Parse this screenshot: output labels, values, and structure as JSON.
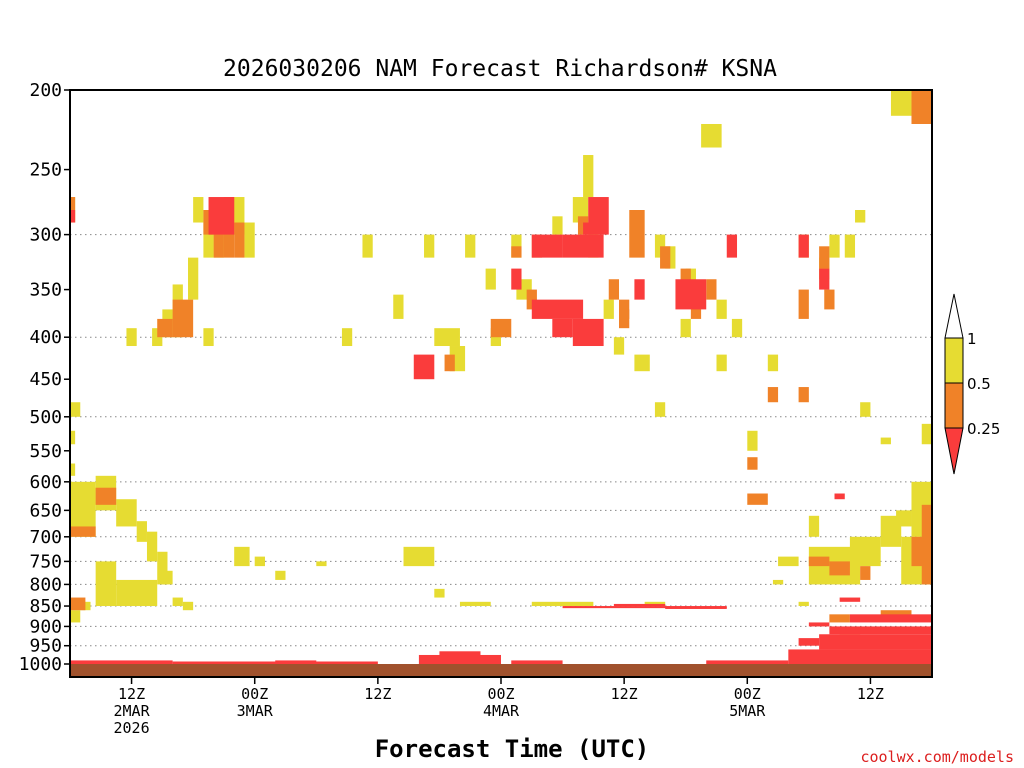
{
  "chart_data": {
    "type": "heatmap",
    "title": "2026030206 NAM Forecast Richardson# KSNA",
    "xlabel": "Forecast Time (UTC)",
    "ylabel": "",
    "credit": "coolwx.com/models",
    "x_unit": "forecast hour from 2026-03-02 06Z",
    "xlim": [
      0,
      84
    ],
    "y_unit": "hPa",
    "ylim": [
      1000,
      200
    ],
    "y_ticks": [
      200,
      250,
      300,
      350,
      400,
      450,
      500,
      550,
      600,
      650,
      700,
      750,
      800,
      850,
      900,
      950,
      1000
    ],
    "grid_levels": [
      300,
      400,
      500,
      600,
      650,
      700,
      750,
      800,
      850,
      900,
      950
    ],
    "x_ticks": [
      {
        "hour": 6,
        "lines": [
          "12Z",
          "2MAR",
          "2026"
        ]
      },
      {
        "hour": 18,
        "lines": [
          "00Z",
          "3MAR"
        ]
      },
      {
        "hour": 30,
        "lines": [
          "12Z"
        ]
      },
      {
        "hour": 42,
        "lines": [
          "00Z",
          "4MAR"
        ]
      },
      {
        "hour": 54,
        "lines": [
          "12Z"
        ]
      },
      {
        "hour": 66,
        "lines": [
          "00Z",
          "5MAR"
        ]
      },
      {
        "hour": 78,
        "lines": [
          "12Z"
        ]
      }
    ],
    "colorbar": {
      "labels": [
        "1",
        "0.5",
        "0.25"
      ],
      "categories": [
        {
          "name": "0.5-1",
          "color": "#e6dc32"
        },
        {
          "name": "0.25-0.5",
          "color": "#f08228"
        },
        {
          "name": "<0.25",
          "color": "#fa3c3c"
        }
      ],
      "over_color": "#ffffff"
    },
    "ground_color": "#a0522d",
    "series": [
      {
        "name": "0.5-1",
        "color": "#e6dc32",
        "cells": [
          [
            0,
            0.5,
            270,
            290
          ],
          [
            12,
            13,
            270,
            290
          ],
          [
            13,
            14,
            290,
            320
          ],
          [
            14,
            15,
            280,
            320
          ],
          [
            15,
            17,
            270,
            300
          ],
          [
            17,
            18,
            290,
            320
          ],
          [
            11.5,
            12.5,
            320,
            360
          ],
          [
            10,
            11,
            345,
            400
          ],
          [
            9,
            10,
            370,
            400
          ],
          [
            8,
            9,
            390,
            410
          ],
          [
            5.5,
            6.5,
            390,
            410
          ],
          [
            13,
            14,
            390,
            410
          ],
          [
            26.5,
            27.5,
            390,
            410
          ],
          [
            28.5,
            29.5,
            300,
            320
          ],
          [
            31.5,
            32.5,
            355,
            380
          ],
          [
            34.5,
            35.5,
            300,
            320
          ],
          [
            35.5,
            38,
            390,
            410
          ],
          [
            37,
            38.5,
            410,
            440
          ],
          [
            38.5,
            39.5,
            300,
            320
          ],
          [
            40.5,
            41.5,
            330,
            350
          ],
          [
            41,
            42,
            390,
            410
          ],
          [
            43,
            44,
            300,
            320
          ],
          [
            43.5,
            45,
            340,
            360
          ],
          [
            47,
            48,
            285,
            300
          ],
          [
            49,
            50.5,
            270,
            290
          ],
          [
            50,
            51,
            240,
            270
          ],
          [
            50.5,
            51.5,
            300,
            320
          ],
          [
            52,
            53,
            360,
            380
          ],
          [
            53,
            54,
            400,
            420
          ],
          [
            57,
            58,
            300,
            320
          ],
          [
            55,
            56.5,
            420,
            440
          ],
          [
            58,
            59,
            310,
            330
          ],
          [
            60,
            61,
            330,
            350
          ],
          [
            59.5,
            60.5,
            380,
            400
          ],
          [
            63,
            64,
            360,
            380
          ],
          [
            64.5,
            65.5,
            380,
            400
          ],
          [
            63,
            64,
            420,
            440
          ],
          [
            61.5,
            63.5,
            220,
            235
          ],
          [
            80,
            82,
            200,
            215
          ],
          [
            71,
            72,
            300,
            320
          ],
          [
            73,
            74,
            320,
            340
          ],
          [
            74,
            75,
            300,
            320
          ],
          [
            75.5,
            76.5,
            300,
            320
          ],
          [
            76.5,
            77.5,
            280,
            290
          ],
          [
            68,
            69,
            420,
            440
          ],
          [
            57,
            58,
            480,
            500
          ],
          [
            66,
            67,
            520,
            550
          ],
          [
            77,
            78,
            480,
            500
          ],
          [
            79,
            80,
            530,
            540
          ],
          [
            83,
            84,
            510,
            540
          ],
          [
            0,
            1,
            480,
            500
          ],
          [
            0,
            0.5,
            520,
            540
          ],
          [
            0,
            2.5,
            600,
            700
          ],
          [
            2.5,
            4.5,
            590,
            650
          ],
          [
            4.5,
            6.5,
            630,
            680
          ],
          [
            6.5,
            7.5,
            670,
            710
          ],
          [
            7.5,
            8.5,
            690,
            750
          ],
          [
            8.5,
            9.5,
            730,
            800
          ],
          [
            0,
            0.5,
            570,
            590
          ],
          [
            2.5,
            4.5,
            750,
            850
          ],
          [
            4.5,
            8.5,
            790,
            850
          ],
          [
            9,
            10,
            770,
            800
          ],
          [
            10,
            11,
            830,
            850
          ],
          [
            11,
            12,
            840,
            860
          ],
          [
            1,
            2,
            840,
            860
          ],
          [
            0,
            1,
            860,
            890
          ],
          [
            16,
            17.5,
            720,
            760
          ],
          [
            18,
            19,
            740,
            760
          ],
          [
            20,
            21,
            770,
            790
          ],
          [
            24,
            25,
            750,
            760
          ],
          [
            32.5,
            35.5,
            720,
            760
          ],
          [
            35.5,
            36.5,
            810,
            830
          ],
          [
            38,
            41,
            840,
            850
          ],
          [
            45,
            51,
            840,
            850
          ],
          [
            56,
            58,
            840,
            850
          ],
          [
            69,
            71,
            740,
            760
          ],
          [
            72,
            73,
            660,
            700
          ],
          [
            72,
            77,
            720,
            800
          ],
          [
            76,
            79,
            700,
            760
          ],
          [
            79,
            81,
            660,
            720
          ],
          [
            80.5,
            82,
            650,
            680
          ],
          [
            81,
            84,
            700,
            800
          ],
          [
            82,
            84,
            600,
            700
          ],
          [
            72,
            73,
            740,
            760
          ],
          [
            68.5,
            69.5,
            790,
            800
          ],
          [
            71,
            72,
            840,
            850
          ]
        ]
      },
      {
        "name": "0.25-0.5",
        "color": "#f08228",
        "cells": [
          [
            0,
            0.5,
            270,
            290
          ],
          [
            10,
            12,
            360,
            400
          ],
          [
            8.5,
            10,
            380,
            400
          ],
          [
            13,
            14,
            280,
            300
          ],
          [
            14,
            15,
            290,
            320
          ],
          [
            15,
            16,
            270,
            320
          ],
          [
            16,
            17,
            290,
            320
          ],
          [
            36.5,
            37.5,
            420,
            440
          ],
          [
            41,
            43,
            380,
            400
          ],
          [
            43,
            44,
            310,
            320
          ],
          [
            44.5,
            45.5,
            350,
            370
          ],
          [
            45,
            46,
            300,
            320
          ],
          [
            49.5,
            50.5,
            285,
            300
          ],
          [
            52.5,
            53.5,
            340,
            360
          ],
          [
            53.5,
            54.5,
            370,
            390
          ],
          [
            53.5,
            54.5,
            360,
            380
          ],
          [
            54.5,
            56,
            280,
            320
          ],
          [
            57.5,
            58.5,
            310,
            330
          ],
          [
            59.5,
            60.5,
            330,
            350
          ],
          [
            62,
            63,
            340,
            360
          ],
          [
            60.5,
            61.5,
            360,
            380
          ],
          [
            68,
            69,
            460,
            480
          ],
          [
            66,
            67,
            560,
            580
          ],
          [
            71,
            72,
            350,
            380
          ],
          [
            71,
            72,
            460,
            480
          ],
          [
            73,
            74,
            310,
            330
          ],
          [
            73.5,
            74.5,
            350,
            370
          ],
          [
            82,
            84,
            200,
            220
          ],
          [
            66,
            68,
            620,
            640
          ],
          [
            2.5,
            4.5,
            610,
            640
          ],
          [
            0,
            2.5,
            680,
            700
          ],
          [
            0,
            1.5,
            830,
            860
          ],
          [
            72,
            74,
            740,
            760
          ],
          [
            74,
            76,
            750,
            780
          ],
          [
            77,
            78,
            760,
            790
          ],
          [
            83,
            84,
            640,
            800
          ],
          [
            82,
            84,
            700,
            760
          ],
          [
            79,
            82,
            860,
            880
          ],
          [
            74,
            76,
            870,
            890
          ],
          [
            75,
            77,
            920,
            940
          ]
        ]
      },
      {
        "name": "<0.25",
        "color": "#fa3c3c",
        "cells": [
          [
            0,
            0.5,
            280,
            290
          ],
          [
            13.5,
            16,
            270,
            300
          ],
          [
            33.5,
            35.5,
            420,
            450
          ],
          [
            43,
            44,
            330,
            350
          ],
          [
            45,
            48,
            300,
            320
          ],
          [
            45,
            50,
            360,
            380
          ],
          [
            47,
            49,
            380,
            400
          ],
          [
            48,
            52,
            300,
            320
          ],
          [
            49,
            52,
            380,
            410
          ],
          [
            50,
            51,
            290,
            300
          ],
          [
            50.5,
            52.5,
            270,
            300
          ],
          [
            55,
            56,
            340,
            360
          ],
          [
            59,
            62,
            340,
            370
          ],
          [
            64,
            65,
            300,
            320
          ],
          [
            71,
            72,
            300,
            320
          ],
          [
            73,
            74,
            330,
            350
          ],
          [
            74.5,
            75.5,
            620,
            630
          ],
          [
            75,
            77,
            830,
            840
          ],
          [
            72,
            74,
            890,
            900
          ],
          [
            76,
            84,
            870,
            890
          ],
          [
            74,
            84,
            900,
            920
          ],
          [
            48,
            64,
            850,
            855
          ],
          [
            58,
            64,
            853,
            857
          ],
          [
            53,
            58,
            845,
            850
          ],
          [
            71,
            73,
            930,
            950
          ],
          [
            73,
            84,
            920,
            960
          ],
          [
            70,
            84,
            960,
            1000
          ],
          [
            62,
            70,
            990,
            1000
          ],
          [
            43,
            48,
            990,
            1000
          ],
          [
            34,
            42,
            975,
            1000
          ],
          [
            36,
            40,
            965,
            980
          ],
          [
            20,
            24,
            990,
            995
          ],
          [
            0,
            10,
            990,
            1000
          ],
          [
            10,
            30,
            993,
            1000
          ]
        ]
      }
    ]
  }
}
